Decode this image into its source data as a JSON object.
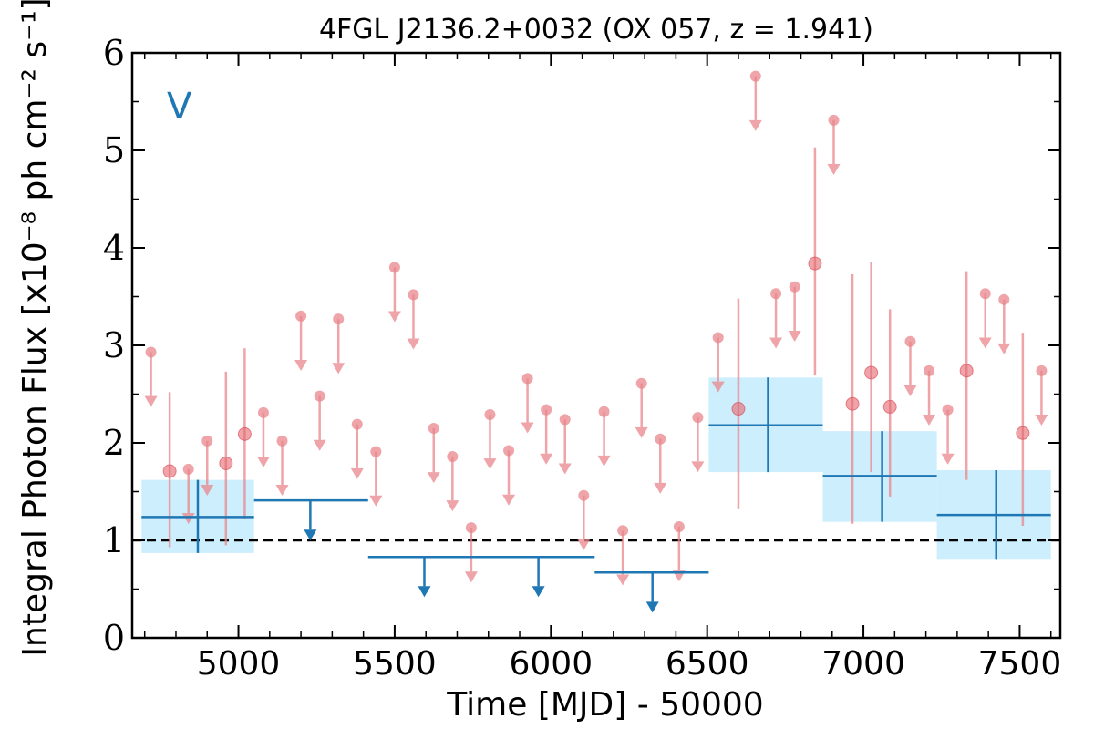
{
  "chart_data": {
    "type": "scatter",
    "title": "4FGL J2136.2+0032 (OX 057, z = 1.941)",
    "xlabel": "Time [MJD] - 50000",
    "ylabel": "Integral Photon Flux [x10⁻⁸ ph cm⁻² s⁻¹]",
    "panel_label": "V",
    "xlim": [
      4660,
      7630
    ],
    "ylim": [
      0,
      6
    ],
    "x_ticks": [
      5000,
      5500,
      6000,
      6500,
      7000,
      7500
    ],
    "y_ticks": [
      0,
      1,
      2,
      3,
      4,
      5,
      6
    ],
    "grid": false,
    "reference_line": {
      "y": 1.0,
      "style": "dashed",
      "color": "#000000"
    },
    "colors": {
      "fine_bins": "#e8868b",
      "coarse_bins": "#1f77b4",
      "coarse_band": "#cdeefc"
    },
    "fine_bins": {
      "detections": [
        {
          "x": 4780,
          "y": 1.71,
          "ylo": 0.93,
          "yhi": 2.52
        },
        {
          "x": 4960,
          "y": 1.79,
          "ylo": 0.95,
          "yhi": 2.73
        },
        {
          "x": 5020,
          "y": 2.09,
          "ylo": 1.22,
          "yhi": 2.97
        },
        {
          "x": 6600,
          "y": 2.35,
          "ylo": 1.32,
          "yhi": 3.48
        },
        {
          "x": 6845,
          "y": 3.84,
          "ylo": 2.69,
          "yhi": 5.03
        },
        {
          "x": 6965,
          "y": 2.4,
          "ylo": 1.17,
          "yhi": 3.73
        },
        {
          "x": 7025,
          "y": 2.72,
          "ylo": 1.7,
          "yhi": 3.85
        },
        {
          "x": 7085,
          "y": 2.37,
          "ylo": 1.45,
          "yhi": 3.37
        },
        {
          "x": 7330,
          "y": 2.74,
          "ylo": 1.62,
          "yhi": 3.76
        },
        {
          "x": 7510,
          "y": 2.1,
          "ylo": 1.15,
          "yhi": 3.13
        }
      ],
      "upper_limits": [
        {
          "x": 4720,
          "y": 2.93
        },
        {
          "x": 4840,
          "y": 1.73
        },
        {
          "x": 4900,
          "y": 2.02
        },
        {
          "x": 5080,
          "y": 2.31
        },
        {
          "x": 5140,
          "y": 2.02
        },
        {
          "x": 5200,
          "y": 3.3
        },
        {
          "x": 5260,
          "y": 2.48
        },
        {
          "x": 5320,
          "y": 3.27
        },
        {
          "x": 5380,
          "y": 2.19
        },
        {
          "x": 5440,
          "y": 1.91
        },
        {
          "x": 5500,
          "y": 3.8
        },
        {
          "x": 5560,
          "y": 3.52
        },
        {
          "x": 5625,
          "y": 2.15
        },
        {
          "x": 5685,
          "y": 1.86
        },
        {
          "x": 5745,
          "y": 1.13
        },
        {
          "x": 5805,
          "y": 2.29
        },
        {
          "x": 5865,
          "y": 1.92
        },
        {
          "x": 5925,
          "y": 2.66
        },
        {
          "x": 5985,
          "y": 2.34
        },
        {
          "x": 6045,
          "y": 2.24
        },
        {
          "x": 6105,
          "y": 1.46
        },
        {
          "x": 6170,
          "y": 2.32
        },
        {
          "x": 6230,
          "y": 1.1
        },
        {
          "x": 6290,
          "y": 2.61
        },
        {
          "x": 6350,
          "y": 2.04
        },
        {
          "x": 6410,
          "y": 1.14
        },
        {
          "x": 6470,
          "y": 2.26
        },
        {
          "x": 6535,
          "y": 3.08
        },
        {
          "x": 6655,
          "y": 5.76
        },
        {
          "x": 6720,
          "y": 3.53
        },
        {
          "x": 6780,
          "y": 3.6
        },
        {
          "x": 6905,
          "y": 5.31
        },
        {
          "x": 7150,
          "y": 3.04
        },
        {
          "x": 7210,
          "y": 2.74
        },
        {
          "x": 7270,
          "y": 2.34
        },
        {
          "x": 7390,
          "y": 3.53
        },
        {
          "x": 7450,
          "y": 3.47
        },
        {
          "x": 7570,
          "y": 2.74
        }
      ]
    },
    "coarse_bins": {
      "detections": [
        {
          "x": 4870,
          "x0": 4690,
          "x1": 5050,
          "y": 1.24,
          "ylo": 0.87,
          "yhi": 1.62
        },
        {
          "x": 6695,
          "x0": 6505,
          "x1": 6870,
          "y": 2.18,
          "ylo": 1.7,
          "yhi": 2.67
        },
        {
          "x": 7060,
          "x0": 6870,
          "x1": 7235,
          "y": 1.66,
          "ylo": 1.19,
          "yhi": 2.12
        },
        {
          "x": 7425,
          "x0": 7235,
          "x1": 7600,
          "y": 1.26,
          "ylo": 0.81,
          "yhi": 1.72
        }
      ],
      "upper_limits": [
        {
          "x0": 5050,
          "x1": 5415,
          "y": 1.41,
          "arrow_x": 5230
        },
        {
          "x0": 5415,
          "x1": 6140,
          "y": 0.83,
          "arrow_x": 5595
        },
        {
          "x0": 5415,
          "x1": 6140,
          "y": 0.83,
          "arrow_x": 5960
        },
        {
          "x0": 6140,
          "x1": 6505,
          "y": 0.67,
          "arrow_x": 6325
        }
      ]
    }
  }
}
